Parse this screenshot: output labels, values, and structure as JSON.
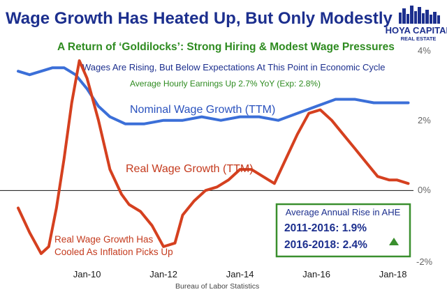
{
  "chart_data": {
    "type": "line",
    "title": "Wage Growth Has Heated Up, But Only Modestly",
    "subtitle": "A Return of ‘Goldilocks’: Strong Hiring & Modest Wage Pressures",
    "notes": [
      "Wages Are Rising, But Below Expectations At This Point in Economic Cycle",
      "Average Hourly Earnings Up 2.7% YoY (Exp: 2.8%)"
    ],
    "x_ticks": [
      "Jan-10",
      "Jan-12",
      "Jan-14",
      "Jan-16",
      "Jan-18"
    ],
    "x_range": [
      2008.2,
      2018.5
    ],
    "y_ticks": [
      "4%",
      "2%",
      "0%",
      "-2%"
    ],
    "y_tick_values": [
      4,
      2,
      0,
      -2
    ],
    "ylim": [
      -2,
      4
    ],
    "source": "Bureau of Labor Statistics",
    "series": [
      {
        "name": "Nominal Wage Growth (TTM)",
        "color": "#3b6fd8",
        "x": [
          2008.2,
          2008.5,
          2008.8,
          2009.1,
          2009.4,
          2009.7,
          2010.0,
          2010.3,
          2010.6,
          2011.0,
          2011.5,
          2012.0,
          2012.5,
          2013.0,
          2013.5,
          2014.0,
          2014.5,
          2015.0,
          2015.5,
          2016.0,
          2016.5,
          2017.0,
          2017.5,
          2018.0,
          2018.4
        ],
        "values": [
          3.4,
          3.3,
          3.4,
          3.5,
          3.5,
          3.3,
          2.9,
          2.4,
          2.1,
          1.9,
          1.9,
          2.0,
          2.0,
          2.1,
          2.0,
          2.1,
          2.1,
          2.0,
          2.2,
          2.4,
          2.6,
          2.6,
          2.5,
          2.5,
          2.5
        ]
      },
      {
        "name": "Real Wage Growth (TTM)",
        "color": "#d5401f",
        "x": [
          2008.2,
          2008.5,
          2008.8,
          2009.0,
          2009.2,
          2009.4,
          2009.6,
          2009.8,
          2010.0,
          2010.3,
          2010.6,
          2010.9,
          2011.1,
          2011.4,
          2011.7,
          2012.0,
          2012.3,
          2012.5,
          2012.8,
          2013.1,
          2013.4,
          2013.7,
          2014.0,
          2014.3,
          2014.6,
          2014.9,
          2015.2,
          2015.5,
          2015.8,
          2016.1,
          2016.4,
          2016.7,
          2017.0,
          2017.3,
          2017.6,
          2017.9,
          2018.1,
          2018.4
        ],
        "values": [
          -0.5,
          -1.2,
          -1.8,
          -1.6,
          -0.5,
          0.9,
          2.5,
          3.7,
          3.2,
          2.0,
          0.6,
          -0.1,
          -0.4,
          -0.6,
          -1.0,
          -1.6,
          -1.5,
          -0.7,
          -0.3,
          0.0,
          0.1,
          0.3,
          0.6,
          0.6,
          0.4,
          0.2,
          0.9,
          1.6,
          2.2,
          2.3,
          2.0,
          1.6,
          1.2,
          0.8,
          0.4,
          0.3,
          0.3,
          0.2
        ]
      }
    ],
    "series_labels": [
      "Nominal Wage Growth (TTM)",
      "Real Wage Growth (TTM)"
    ],
    "annotation": {
      "line1": "Real Wage Growth Has",
      "line2": "Cooled As Inflation Picks Up"
    },
    "info_box": {
      "title": "Average Annual Rise in AHE",
      "rows": [
        "2011-2016: 1.9%",
        "2016-2018: 2.4%"
      ],
      "border_color": "#3a8f2e",
      "arrow_color": "#3a8f2e"
    },
    "grid": false,
    "zero_line": true
  },
  "logo": {
    "line1": "HOYA CAPITAL",
    "line2": "REAL ESTATE"
  }
}
